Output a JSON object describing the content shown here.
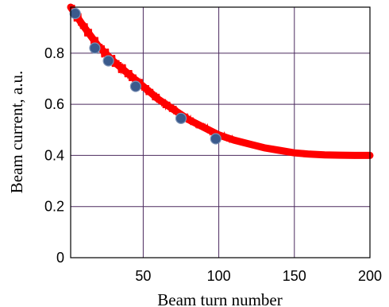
{
  "chart_data": {
    "type": "scatter",
    "title": "",
    "xlabel": "Beam turn number",
    "ylabel": "Beam current, a.u.",
    "xlim": [
      2,
      200
    ],
    "ylim": [
      0,
      0.98
    ],
    "x_ticks": [
      50,
      100,
      150,
      200
    ],
    "y_ticks": [
      0,
      0.2,
      0.4,
      0.6,
      0.8
    ],
    "x_tick_labels": [
      "50",
      "100",
      "150",
      "200"
    ],
    "y_tick_labels": [
      "0",
      "0.2",
      "0.4",
      "0.6",
      "0.8"
    ],
    "grid": true,
    "legend": "none",
    "series": [
      {
        "style": "line",
        "color": "#ff0000",
        "x": [
          2,
          10,
          20,
          30,
          40,
          50,
          60,
          70,
          80,
          90,
          100,
          110,
          120,
          130,
          140,
          150,
          160,
          170,
          180,
          190,
          200
        ],
        "y": [
          0.98,
          0.91,
          0.83,
          0.77,
          0.72,
          0.67,
          0.62,
          0.58,
          0.54,
          0.51,
          0.48,
          0.46,
          0.445,
          0.43,
          0.42,
          0.41,
          0.405,
          0.402,
          0.401,
          0.4,
          0.4
        ]
      },
      {
        "style": "markers",
        "color": "#3a5a8c",
        "x": [
          5,
          18,
          27,
          45,
          75,
          98
        ],
        "y": [
          0.955,
          0.82,
          0.77,
          0.67,
          0.545,
          0.465
        ]
      }
    ]
  }
}
